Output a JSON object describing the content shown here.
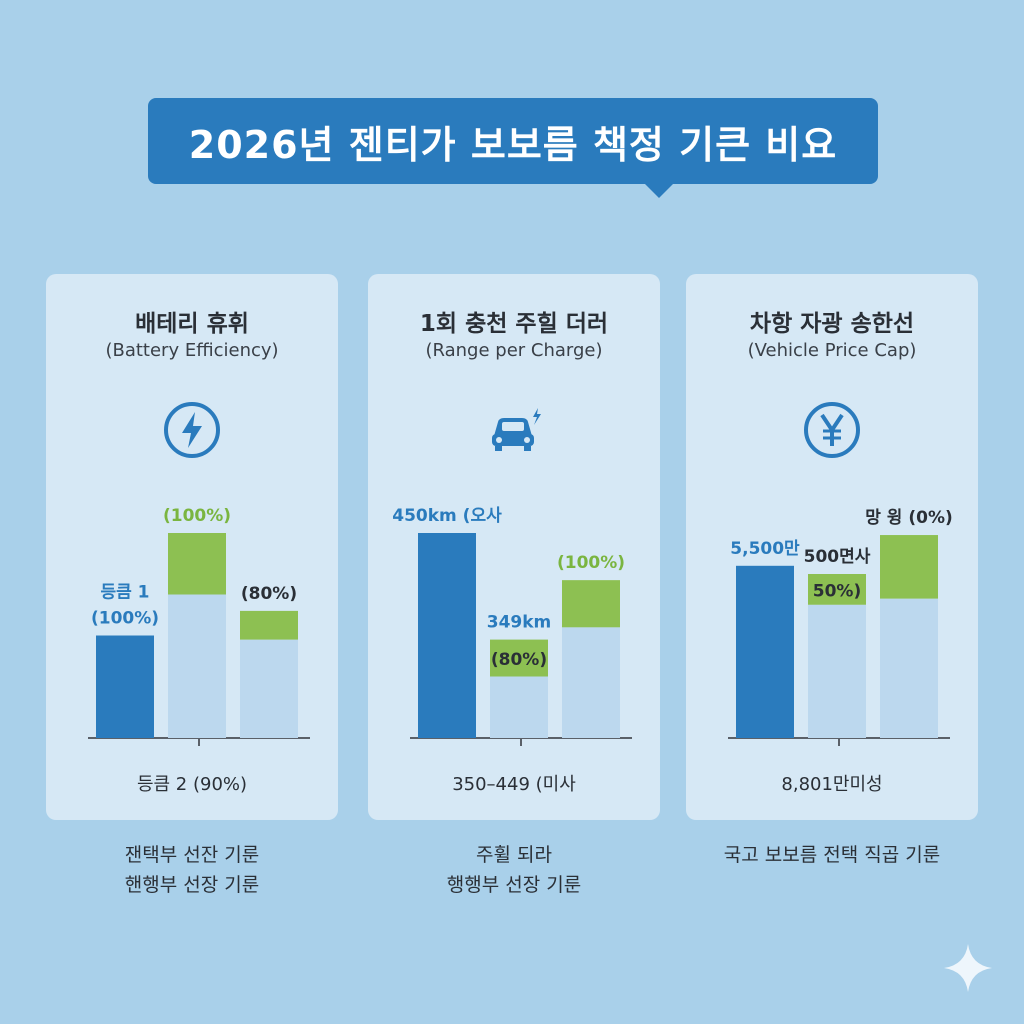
{
  "title": "2026년 젠티가 보보름 책정 기큰 비요",
  "colors": {
    "dark": "#2a7bbd",
    "green": "#8dc052",
    "light": "#bcd8ee",
    "title_bg": "#2a7bbd"
  },
  "cards": [
    {
      "title": "배테리 휴휘",
      "subtitle": "(Battery Efficiency)",
      "icon": "lightning-bolt-icon",
      "bottom": "등큼 2 (90%)",
      "footer": [
        "잰택부 선잔 기룬",
        "핸행부 선장 기룬"
      ]
    },
    {
      "title": "1회 충천 주힐 더러",
      "subtitle": "(Range per Charge)",
      "icon": "electric-car-icon",
      "bottom": "350–449 (미사",
      "footer": [
        "주휠 되라",
        "행행부 선장 기룬"
      ]
    },
    {
      "title": "차항 자광 송한선",
      "subtitle": "(Vehicle Price Cap)",
      "icon": "yen-coin-icon",
      "bottom": "8,801만미성",
      "footer": [
        "국고 보보름 전택 직곱 기룬"
      ]
    }
  ],
  "chart_data": [
    {
      "type": "bar",
      "title": "배테리 휴휘",
      "ylim": [
        0,
        100
      ],
      "bars": [
        {
          "label": "등큼 1\n(100%)",
          "label_color": "dark",
          "base": 50,
          "top": 0,
          "base_color": "dark"
        },
        {
          "label": "(100%)",
          "label_color": "green",
          "base": 70,
          "top": 30,
          "base_color": "light"
        },
        {
          "label": "(80%)",
          "label_color": "text",
          "base": 48,
          "top": 14,
          "base_color": "light"
        }
      ]
    },
    {
      "type": "bar",
      "title": "1회 충천 주힐 더러",
      "ylim": [
        0,
        100
      ],
      "bars": [
        {
          "label": "450km (오사",
          "label_color": "dark",
          "base": 100,
          "top": 0,
          "base_color": "dark"
        },
        {
          "label": "349km",
          "label_color": "dark",
          "inner_label": "(80%)",
          "base": 30,
          "top": 18,
          "base_color": "light"
        },
        {
          "label": "(100%)",
          "label_color": "green",
          "base": 54,
          "top": 23,
          "base_color": "light"
        }
      ]
    },
    {
      "type": "bar",
      "title": "차항 자광 송한선",
      "ylim": [
        0,
        100
      ],
      "bars": [
        {
          "label": "5,500만",
          "label_color": "dark",
          "base": 84,
          "top": 0,
          "base_color": "dark"
        },
        {
          "label": "500면사",
          "label_color": "text",
          "inner_label": "50%)",
          "base": 65,
          "top": 15,
          "base_color": "light"
        },
        {
          "label": "망 윙  (0%)",
          "label_color": "text",
          "base": 68,
          "top": 31,
          "base_color": "light"
        }
      ]
    }
  ]
}
